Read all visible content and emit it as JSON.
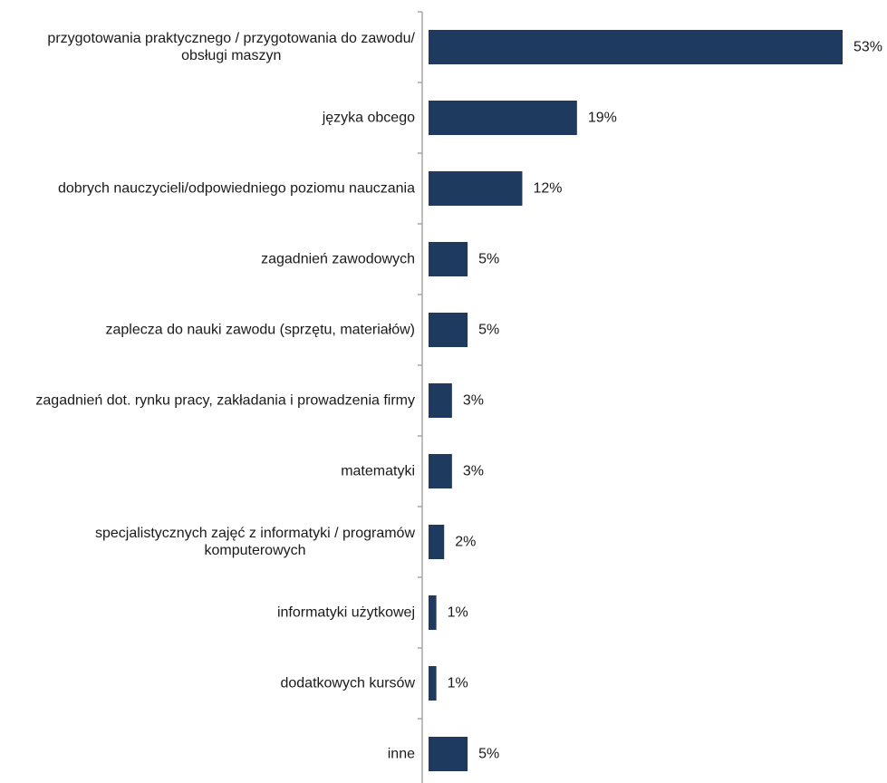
{
  "chart_data": {
    "type": "bar",
    "orientation": "horizontal",
    "categories": [
      [
        "przygotowania praktycznego / przygotowania do zawodu/",
        "obsługi maszyn"
      ],
      [
        "języka obcego"
      ],
      [
        "dobrych nauczycieli/odpowiedniego poziomu nauczania"
      ],
      [
        "zagadnień zawodowych"
      ],
      [
        "zaplecza do nauki zawodu (sprzętu, materiałów)"
      ],
      [
        "zagadnień dot. rynku pracy, zakładania i prowadzenia firmy"
      ],
      [
        "matematyki"
      ],
      [
        "specjalistycznych zajęć z informatyki / programów",
        "komputerowych"
      ],
      [
        "informatyki użytkowej"
      ],
      [
        "dodatkowych kursów"
      ],
      [
        "inne"
      ]
    ],
    "values": [
      53,
      19,
      12,
      5,
      5,
      3,
      3,
      2,
      1,
      1,
      5
    ],
    "value_labels": [
      "53%",
      "19%",
      "12%",
      "5%",
      "5%",
      "3%",
      "3%",
      "2%",
      "1%",
      "1%",
      "5%"
    ],
    "xlim": [
      0,
      53
    ],
    "grid": false,
    "legend": "none",
    "colors": {
      "bar": "#1e3a5f",
      "axis": "#a6a6a6",
      "text": "#1a1a1a"
    }
  }
}
